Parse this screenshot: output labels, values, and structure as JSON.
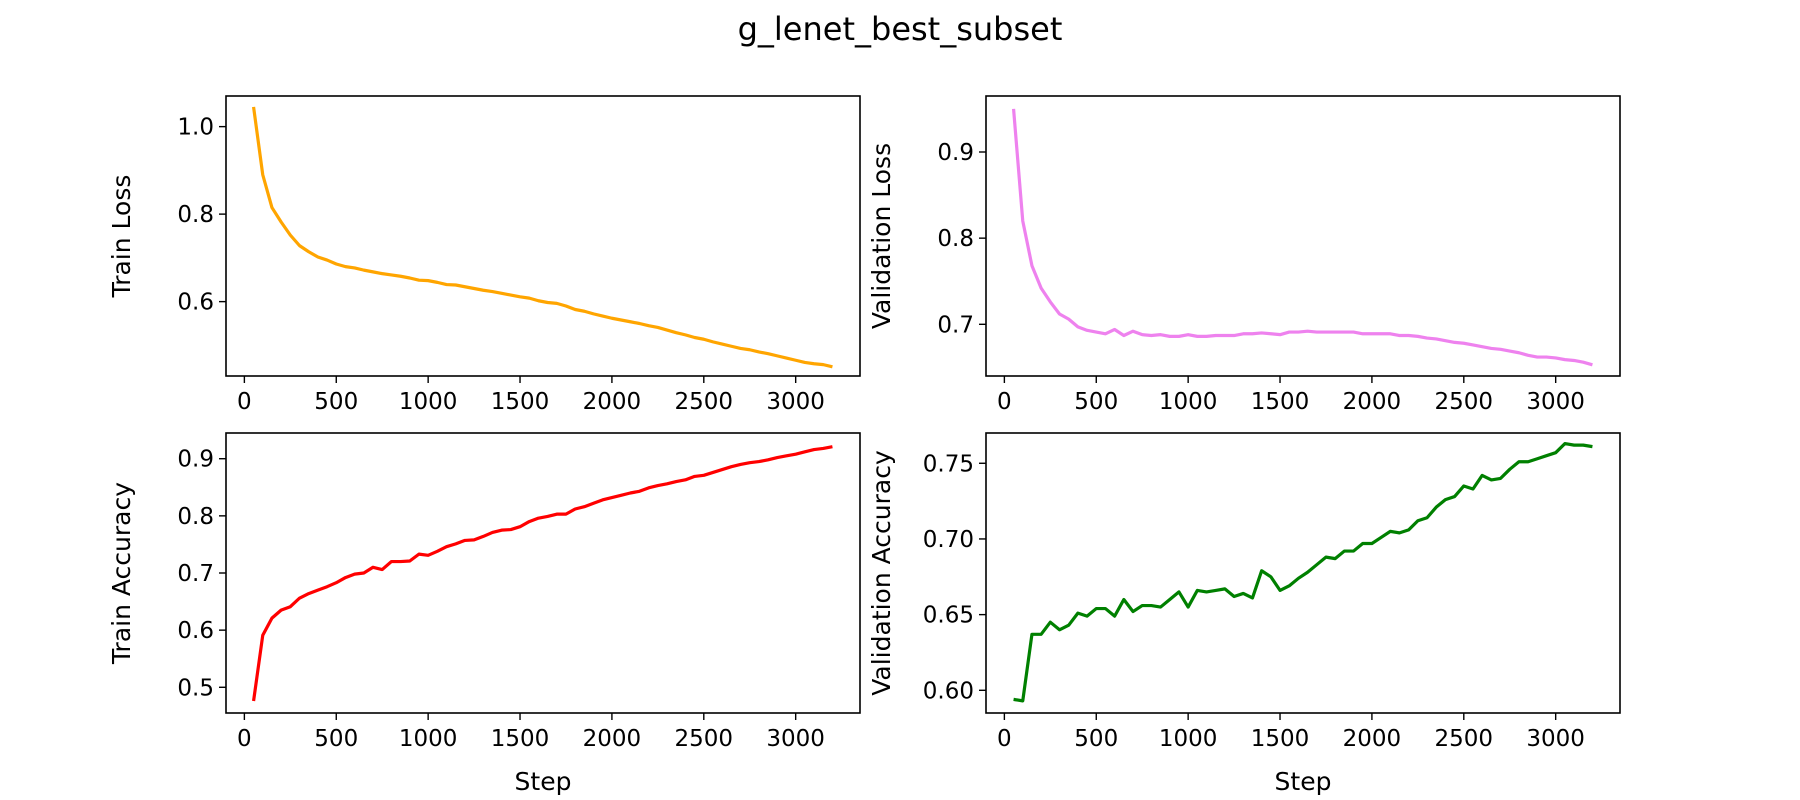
{
  "title": "g_lenet_best_subset",
  "chart_data": [
    {
      "type": "line",
      "name": "train-loss",
      "ylabel": "Train Loss",
      "xlabel": "",
      "color": "#FFA500",
      "xlim": [
        -100,
        3350
      ],
      "ylim": [
        0.43,
        1.07
      ],
      "xticks": [
        0,
        500,
        1000,
        1500,
        2000,
        2500,
        3000
      ],
      "yticks": [
        0.6,
        0.8,
        1.0
      ],
      "ytick_labels": [
        "0.6",
        "0.8",
        "1.0"
      ],
      "x": [
        50,
        100,
        150,
        200,
        250,
        300,
        350,
        400,
        450,
        500,
        550,
        600,
        650,
        700,
        750,
        800,
        850,
        900,
        950,
        1000,
        1050,
        1100,
        1150,
        1200,
        1250,
        1300,
        1350,
        1400,
        1450,
        1500,
        1550,
        1600,
        1650,
        1700,
        1750,
        1800,
        1850,
        1900,
        1950,
        2000,
        2050,
        2100,
        2150,
        2200,
        2250,
        2300,
        2350,
        2400,
        2450,
        2500,
        2550,
        2600,
        2650,
        2700,
        2750,
        2800,
        2850,
        2900,
        2950,
        3000,
        3050,
        3100,
        3150,
        3200
      ],
      "y": [
        1.045,
        0.89,
        0.815,
        0.782,
        0.752,
        0.728,
        0.714,
        0.702,
        0.695,
        0.686,
        0.68,
        0.677,
        0.672,
        0.668,
        0.664,
        0.661,
        0.658,
        0.654,
        0.649,
        0.648,
        0.644,
        0.639,
        0.638,
        0.634,
        0.63,
        0.626,
        0.623,
        0.619,
        0.615,
        0.611,
        0.608,
        0.602,
        0.598,
        0.596,
        0.59,
        0.582,
        0.578,
        0.572,
        0.567,
        0.562,
        0.558,
        0.554,
        0.55,
        0.545,
        0.541,
        0.535,
        0.529,
        0.524,
        0.518,
        0.514,
        0.508,
        0.503,
        0.498,
        0.493,
        0.49,
        0.485,
        0.481,
        0.476,
        0.471,
        0.466,
        0.461,
        0.458,
        0.456,
        0.451
      ]
    },
    {
      "type": "line",
      "name": "validation-loss",
      "ylabel": "Validation Loss",
      "xlabel": "",
      "color": "#EE82EE",
      "xlim": [
        -100,
        3350
      ],
      "ylim": [
        0.64,
        0.965
      ],
      "xticks": [
        0,
        500,
        1000,
        1500,
        2000,
        2500,
        3000
      ],
      "yticks": [
        0.7,
        0.8,
        0.9
      ],
      "ytick_labels": [
        "0.7",
        "0.8",
        "0.9"
      ],
      "x": [
        50,
        100,
        150,
        200,
        250,
        300,
        350,
        400,
        450,
        500,
        550,
        600,
        650,
        700,
        750,
        800,
        850,
        900,
        950,
        1000,
        1050,
        1100,
        1150,
        1200,
        1250,
        1300,
        1350,
        1400,
        1450,
        1500,
        1550,
        1600,
        1650,
        1700,
        1750,
        1800,
        1850,
        1900,
        1950,
        2000,
        2050,
        2100,
        2150,
        2200,
        2250,
        2300,
        2350,
        2400,
        2450,
        2500,
        2550,
        2600,
        2650,
        2700,
        2750,
        2800,
        2850,
        2900,
        2950,
        3000,
        3050,
        3100,
        3150,
        3200
      ],
      "y": [
        0.95,
        0.82,
        0.768,
        0.742,
        0.726,
        0.712,
        0.706,
        0.697,
        0.693,
        0.691,
        0.689,
        0.694,
        0.687,
        0.692,
        0.688,
        0.687,
        0.688,
        0.686,
        0.686,
        0.688,
        0.686,
        0.686,
        0.687,
        0.687,
        0.687,
        0.689,
        0.689,
        0.69,
        0.689,
        0.688,
        0.691,
        0.691,
        0.692,
        0.691,
        0.691,
        0.691,
        0.691,
        0.691,
        0.689,
        0.689,
        0.689,
        0.689,
        0.687,
        0.687,
        0.686,
        0.684,
        0.683,
        0.681,
        0.679,
        0.678,
        0.676,
        0.674,
        0.672,
        0.671,
        0.669,
        0.667,
        0.664,
        0.662,
        0.662,
        0.661,
        0.659,
        0.658,
        0.656,
        0.653
      ]
    },
    {
      "type": "line",
      "name": "train-accuracy",
      "ylabel": "Train Accuracy",
      "xlabel": "Step",
      "color": "#FF0000",
      "xlim": [
        -100,
        3350
      ],
      "ylim": [
        0.455,
        0.945
      ],
      "xticks": [
        0,
        500,
        1000,
        1500,
        2000,
        2500,
        3000
      ],
      "yticks": [
        0.5,
        0.6,
        0.7,
        0.8,
        0.9
      ],
      "ytick_labels": [
        "0.5",
        "0.6",
        "0.7",
        "0.8",
        "0.9"
      ],
      "x": [
        50,
        100,
        150,
        200,
        250,
        300,
        350,
        400,
        450,
        500,
        550,
        600,
        650,
        700,
        750,
        800,
        850,
        900,
        950,
        1000,
        1050,
        1100,
        1150,
        1200,
        1250,
        1300,
        1350,
        1400,
        1450,
        1500,
        1550,
        1600,
        1650,
        1700,
        1750,
        1800,
        1850,
        1900,
        1950,
        2000,
        2050,
        2100,
        2150,
        2200,
        2250,
        2300,
        2350,
        2400,
        2450,
        2500,
        2550,
        2600,
        2650,
        2700,
        2750,
        2800,
        2850,
        2900,
        2950,
        3000,
        3050,
        3100,
        3150,
        3200
      ],
      "y": [
        0.476,
        0.591,
        0.621,
        0.635,
        0.641,
        0.656,
        0.664,
        0.67,
        0.676,
        0.683,
        0.692,
        0.698,
        0.7,
        0.71,
        0.706,
        0.72,
        0.72,
        0.721,
        0.733,
        0.731,
        0.738,
        0.746,
        0.751,
        0.757,
        0.758,
        0.764,
        0.771,
        0.775,
        0.776,
        0.781,
        0.79,
        0.796,
        0.799,
        0.803,
        0.803,
        0.812,
        0.816,
        0.822,
        0.828,
        0.832,
        0.836,
        0.84,
        0.843,
        0.849,
        0.853,
        0.856,
        0.86,
        0.863,
        0.869,
        0.871,
        0.876,
        0.881,
        0.886,
        0.89,
        0.893,
        0.895,
        0.898,
        0.902,
        0.905,
        0.908,
        0.912,
        0.916,
        0.918,
        0.921
      ]
    },
    {
      "type": "line",
      "name": "validation-accuracy",
      "ylabel": "Validation Accuracy",
      "xlabel": "Step",
      "color": "#008000",
      "xlim": [
        -100,
        3350
      ],
      "ylim": [
        0.585,
        0.77
      ],
      "xticks": [
        0,
        500,
        1000,
        1500,
        2000,
        2500,
        3000
      ],
      "yticks": [
        0.6,
        0.65,
        0.7,
        0.75
      ],
      "ytick_labels": [
        "0.60",
        "0.65",
        "0.70",
        "0.75"
      ],
      "x": [
        50,
        100,
        150,
        200,
        250,
        300,
        350,
        400,
        450,
        500,
        550,
        600,
        650,
        700,
        750,
        800,
        850,
        900,
        950,
        1000,
        1050,
        1100,
        1150,
        1200,
        1250,
        1300,
        1350,
        1400,
        1450,
        1500,
        1550,
        1600,
        1650,
        1700,
        1750,
        1800,
        1850,
        1900,
        1950,
        2000,
        2050,
        2100,
        2150,
        2200,
        2250,
        2300,
        2350,
        2400,
        2450,
        2500,
        2550,
        2600,
        2650,
        2700,
        2750,
        2800,
        2850,
        2900,
        2950,
        3000,
        3050,
        3100,
        3150,
        3200
      ],
      "y": [
        0.594,
        0.593,
        0.637,
        0.637,
        0.645,
        0.64,
        0.643,
        0.651,
        0.649,
        0.654,
        0.654,
        0.649,
        0.66,
        0.652,
        0.656,
        0.656,
        0.655,
        0.66,
        0.665,
        0.655,
        0.666,
        0.665,
        0.666,
        0.667,
        0.662,
        0.664,
        0.661,
        0.679,
        0.675,
        0.666,
        0.669,
        0.674,
        0.678,
        0.683,
        0.688,
        0.687,
        0.692,
        0.692,
        0.697,
        0.697,
        0.701,
        0.705,
        0.704,
        0.706,
        0.712,
        0.714,
        0.721,
        0.726,
        0.728,
        0.735,
        0.733,
        0.742,
        0.739,
        0.74,
        0.746,
        0.751,
        0.751,
        0.753,
        0.755,
        0.757,
        0.763,
        0.762,
        0.762,
        0.761
      ]
    }
  ]
}
